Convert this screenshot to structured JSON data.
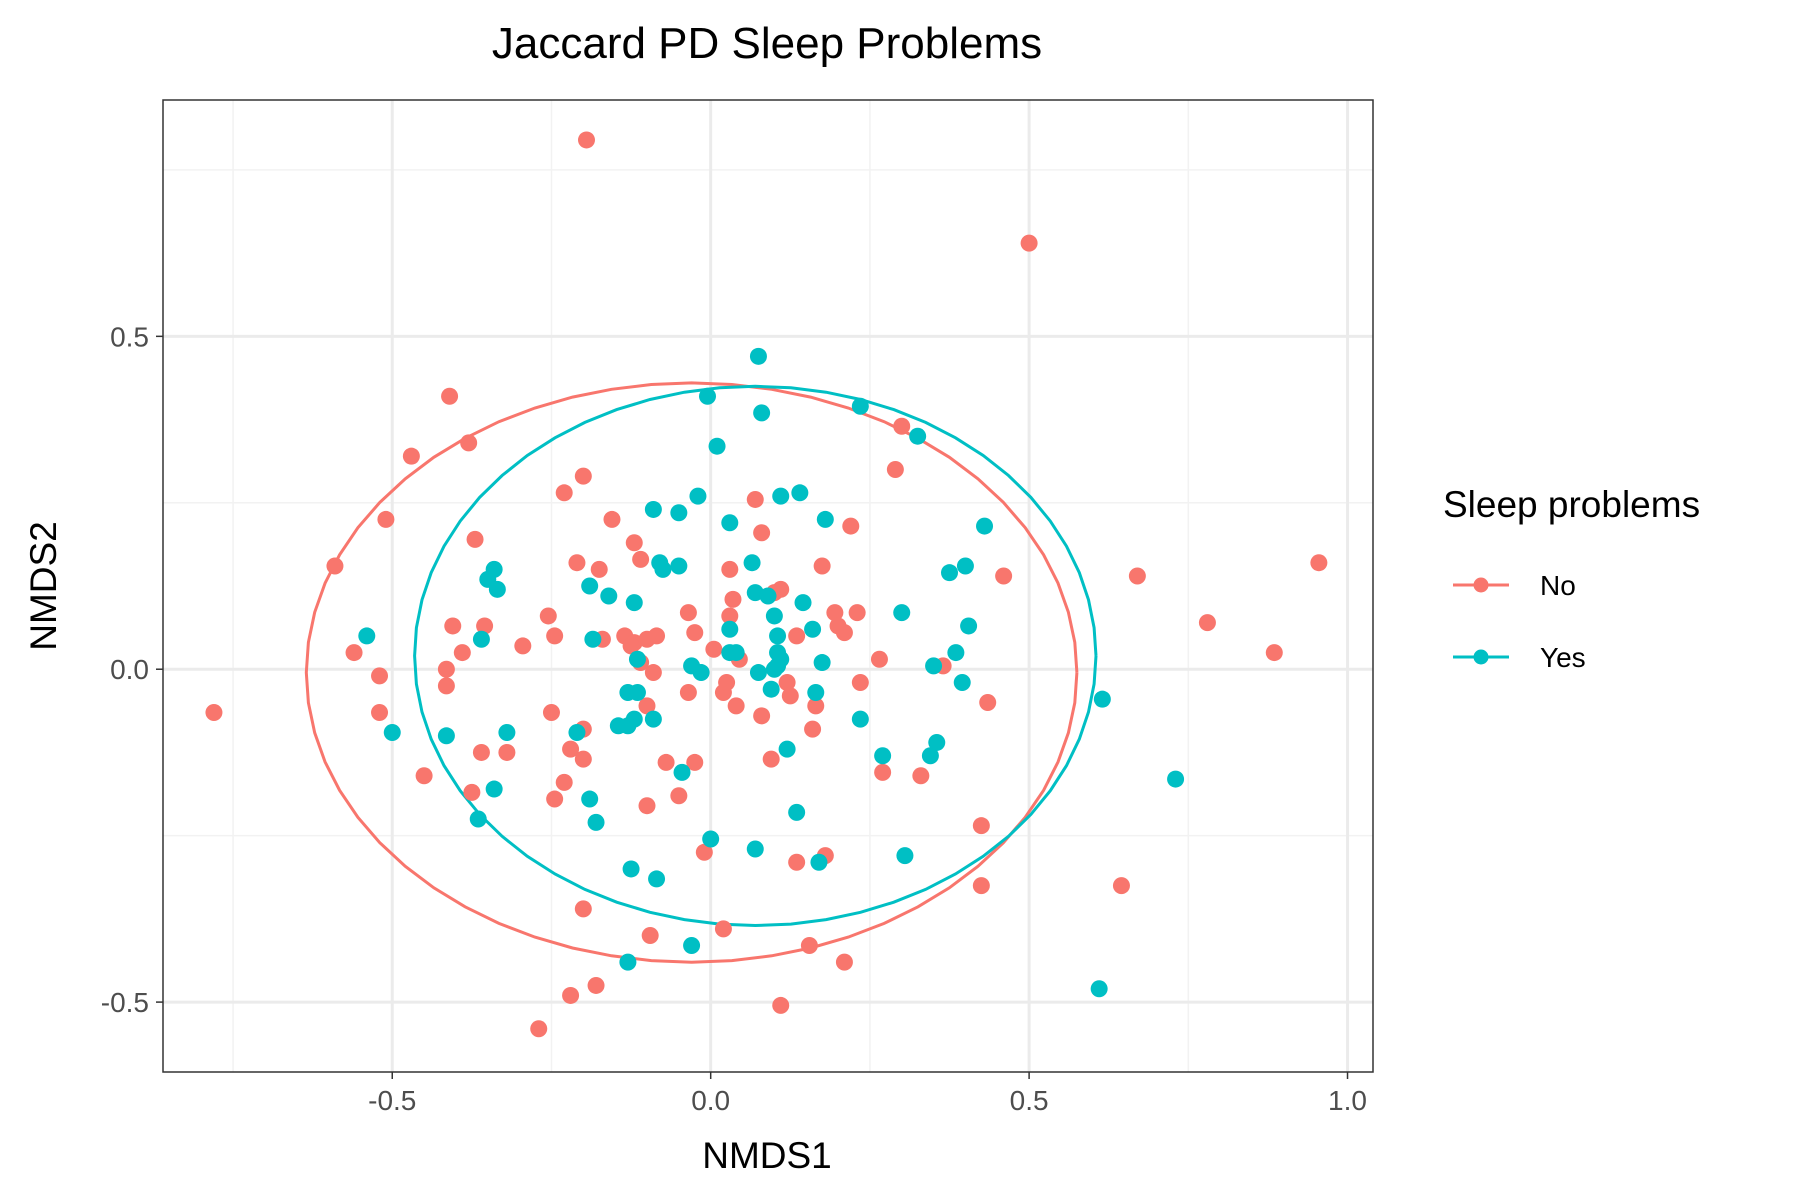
{
  "chart_data": {
    "type": "scatter",
    "title": "Jaccard PD Sleep Problems",
    "xlabel": "NMDS1",
    "ylabel": "NMDS2",
    "xlim": [
      -0.86,
      1.04
    ],
    "ylim": [
      -0.605,
      0.855
    ],
    "x_ticks": [
      -0.5,
      0.0,
      0.5,
      1.0
    ],
    "x_tick_labels": [
      "-0.5",
      "0.0",
      "0.5",
      "1.0"
    ],
    "y_ticks": [
      -0.5,
      0.0,
      0.5
    ],
    "y_tick_labels": [
      "-0.5",
      "0.0",
      "0.5"
    ],
    "grid": true,
    "legend": {
      "title": "Sleep problems",
      "placement": "right"
    },
    "series": [
      {
        "name": "No",
        "color": "#F8766D",
        "ellipse": {
          "cx": -0.03,
          "cy": -0.005,
          "rx": 0.605,
          "ry": 0.435
        },
        "points": [
          [
            -0.195,
            0.795
          ],
          [
            0.5,
            0.64
          ],
          [
            -0.41,
            0.41
          ],
          [
            -0.38,
            0.34
          ],
          [
            -0.47,
            0.32
          ],
          [
            -0.2,
            0.29
          ],
          [
            -0.23,
            0.265
          ],
          [
            -0.51,
            0.225
          ],
          [
            -0.155,
            0.225
          ],
          [
            -0.37,
            0.195
          ],
          [
            -0.12,
            0.19
          ],
          [
            -0.59,
            0.155
          ],
          [
            -0.21,
            0.16
          ],
          [
            -0.11,
            0.165
          ],
          [
            -0.175,
            0.15
          ],
          [
            0.07,
            0.255
          ],
          [
            0.08,
            0.205
          ],
          [
            0.22,
            0.215
          ],
          [
            0.3,
            0.365
          ],
          [
            0.29,
            0.3
          ],
          [
            0.175,
            0.155
          ],
          [
            0.03,
            0.15
          ],
          [
            0.46,
            0.14
          ],
          [
            0.67,
            0.14
          ],
          [
            0.955,
            0.16
          ],
          [
            -0.255,
            0.08
          ],
          [
            -0.405,
            0.065
          ],
          [
            -0.355,
            0.065
          ],
          [
            -0.245,
            0.05
          ],
          [
            -0.17,
            0.045
          ],
          [
            -0.135,
            0.05
          ],
          [
            -0.12,
            0.04
          ],
          [
            -0.085,
            0.05
          ],
          [
            -0.1,
            0.045
          ],
          [
            -0.035,
            0.085
          ],
          [
            -0.025,
            0.055
          ],
          [
            0.03,
            0.08
          ],
          [
            0.035,
            0.105
          ],
          [
            0.1,
            0.115
          ],
          [
            0.11,
            0.12
          ],
          [
            0.195,
            0.085
          ],
          [
            0.2,
            0.065
          ],
          [
            0.21,
            0.055
          ],
          [
            0.23,
            0.085
          ],
          [
            0.135,
            0.05
          ],
          [
            0.78,
            0.07
          ],
          [
            0.885,
            0.025
          ],
          [
            -0.56,
            0.025
          ],
          [
            -0.39,
            0.025
          ],
          [
            -0.295,
            0.035
          ],
          [
            -0.125,
            0.035
          ],
          [
            -0.11,
            0.01
          ],
          [
            -0.09,
            -0.005
          ],
          [
            0.005,
            0.03
          ],
          [
            0.045,
            0.015
          ],
          [
            0.265,
            0.015
          ],
          [
            0.365,
            0.005
          ],
          [
            -0.78,
            -0.065
          ],
          [
            -0.52,
            -0.01
          ],
          [
            -0.415,
            0.0
          ],
          [
            -0.415,
            -0.025
          ],
          [
            -0.52,
            -0.065
          ],
          [
            -0.25,
            -0.065
          ],
          [
            -0.2,
            -0.09
          ],
          [
            -0.1,
            -0.055
          ],
          [
            -0.035,
            -0.035
          ],
          [
            0.02,
            -0.035
          ],
          [
            0.025,
            -0.02
          ],
          [
            0.04,
            -0.055
          ],
          [
            0.12,
            -0.02
          ],
          [
            0.125,
            -0.04
          ],
          [
            0.08,
            -0.07
          ],
          [
            0.16,
            -0.09
          ],
          [
            0.165,
            -0.055
          ],
          [
            0.235,
            -0.02
          ],
          [
            0.435,
            -0.05
          ],
          [
            -0.36,
            -0.125
          ],
          [
            -0.32,
            -0.125
          ],
          [
            -0.22,
            -0.12
          ],
          [
            -0.2,
            -0.135
          ],
          [
            -0.07,
            -0.14
          ],
          [
            -0.025,
            -0.14
          ],
          [
            0.095,
            -0.135
          ],
          [
            0.27,
            -0.155
          ],
          [
            0.33,
            -0.16
          ],
          [
            -0.45,
            -0.16
          ],
          [
            -0.375,
            -0.185
          ],
          [
            -0.23,
            -0.17
          ],
          [
            -0.245,
            -0.195
          ],
          [
            -0.1,
            -0.205
          ],
          [
            -0.05,
            -0.19
          ],
          [
            -0.01,
            -0.275
          ],
          [
            0.135,
            -0.29
          ],
          [
            0.18,
            -0.28
          ],
          [
            0.425,
            -0.235
          ],
          [
            0.425,
            -0.325
          ],
          [
            0.645,
            -0.325
          ],
          [
            -0.2,
            -0.36
          ],
          [
            -0.095,
            -0.4
          ],
          [
            0.02,
            -0.39
          ],
          [
            0.155,
            -0.415
          ],
          [
            0.21,
            -0.44
          ],
          [
            -0.18,
            -0.475
          ],
          [
            -0.22,
            -0.49
          ],
          [
            0.11,
            -0.505
          ],
          [
            -0.27,
            -0.54
          ]
        ]
      },
      {
        "name": "Yes",
        "color": "#00BFC4",
        "ellipse": {
          "cx": 0.07,
          "cy": 0.02,
          "rx": 0.535,
          "ry": 0.405
        },
        "points": [
          [
            0.075,
            0.47
          ],
          [
            -0.005,
            0.41
          ],
          [
            0.08,
            0.385
          ],
          [
            0.235,
            0.395
          ],
          [
            0.325,
            0.35
          ],
          [
            0.01,
            0.335
          ],
          [
            -0.02,
            0.26
          ],
          [
            0.11,
            0.26
          ],
          [
            0.14,
            0.265
          ],
          [
            -0.09,
            0.24
          ],
          [
            -0.05,
            0.235
          ],
          [
            0.03,
            0.22
          ],
          [
            0.18,
            0.225
          ],
          [
            0.43,
            0.215
          ],
          [
            -0.08,
            0.16
          ],
          [
            -0.075,
            0.15
          ],
          [
            -0.05,
            0.155
          ],
          [
            0.065,
            0.16
          ],
          [
            0.375,
            0.145
          ],
          [
            0.4,
            0.155
          ],
          [
            -0.34,
            0.15
          ],
          [
            -0.35,
            0.135
          ],
          [
            -0.335,
            0.12
          ],
          [
            -0.19,
            0.125
          ],
          [
            -0.16,
            0.11
          ],
          [
            -0.12,
            0.1
          ],
          [
            0.07,
            0.115
          ],
          [
            0.09,
            0.11
          ],
          [
            0.145,
            0.1
          ],
          [
            0.1,
            0.08
          ],
          [
            0.3,
            0.085
          ],
          [
            0.03,
            0.06
          ],
          [
            0.105,
            0.05
          ],
          [
            0.16,
            0.06
          ],
          [
            0.405,
            0.065
          ],
          [
            -0.54,
            0.05
          ],
          [
            -0.36,
            0.045
          ],
          [
            -0.185,
            0.045
          ],
          [
            -0.115,
            0.015
          ],
          [
            0.04,
            0.025
          ],
          [
            0.03,
            0.025
          ],
          [
            0.105,
            0.025
          ],
          [
            0.105,
            0.005
          ],
          [
            0.11,
            0.015
          ],
          [
            0.175,
            0.01
          ],
          [
            0.385,
            0.025
          ],
          [
            0.35,
            0.005
          ],
          [
            -0.03,
            0.005
          ],
          [
            -0.015,
            -0.005
          ],
          [
            0.075,
            -0.005
          ],
          [
            0.1,
            0.0
          ],
          [
            0.165,
            -0.035
          ],
          [
            0.395,
            -0.02
          ],
          [
            0.615,
            -0.045
          ],
          [
            -0.5,
            -0.095
          ],
          [
            -0.415,
            -0.1
          ],
          [
            -0.32,
            -0.095
          ],
          [
            -0.21,
            -0.095
          ],
          [
            -0.145,
            -0.085
          ],
          [
            -0.12,
            -0.075
          ],
          [
            -0.13,
            -0.035
          ],
          [
            -0.115,
            -0.035
          ],
          [
            -0.13,
            -0.085
          ],
          [
            -0.09,
            -0.075
          ],
          [
            0.095,
            -0.03
          ],
          [
            0.235,
            -0.075
          ],
          [
            0.355,
            -0.11
          ],
          [
            0.345,
            -0.13
          ],
          [
            0.27,
            -0.13
          ],
          [
            0.12,
            -0.12
          ],
          [
            -0.34,
            -0.18
          ],
          [
            -0.365,
            -0.225
          ],
          [
            -0.19,
            -0.195
          ],
          [
            -0.18,
            -0.23
          ],
          [
            -0.045,
            -0.155
          ],
          [
            0.135,
            -0.215
          ],
          [
            0.73,
            -0.165
          ],
          [
            0.0,
            -0.255
          ],
          [
            0.07,
            -0.27
          ],
          [
            0.17,
            -0.29
          ],
          [
            0.305,
            -0.28
          ],
          [
            -0.125,
            -0.3
          ],
          [
            -0.085,
            -0.315
          ],
          [
            -0.03,
            -0.415
          ],
          [
            -0.13,
            -0.44
          ],
          [
            0.61,
            -0.48
          ]
        ]
      }
    ]
  }
}
